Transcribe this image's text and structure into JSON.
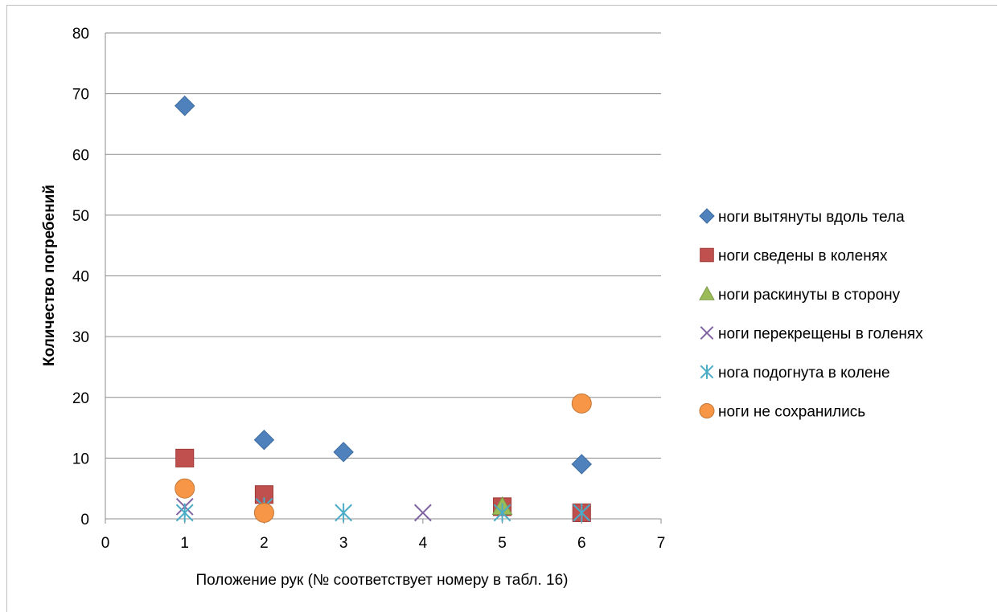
{
  "chart_data": {
    "type": "scatter",
    "title": "",
    "xlabel": "Положение рук (№ соответствует номеру в табл. 16)",
    "ylabel": "Количество погребений",
    "xlim": [
      0,
      7
    ],
    "ylim": [
      0,
      80
    ],
    "x_ticks": [
      "0",
      "1",
      "2",
      "3",
      "4",
      "5",
      "6",
      "7"
    ],
    "y_ticks": [
      "0",
      "10",
      "20",
      "30",
      "40",
      "50",
      "60",
      "70",
      "80"
    ],
    "grid": "horizontal",
    "legend_position": "right",
    "series": [
      {
        "name": "ноги вытянуты вдоль тела",
        "marker": "diamond",
        "color": "#4f81bd",
        "points": [
          [
            1,
            68
          ],
          [
            2,
            13
          ],
          [
            3,
            11
          ],
          [
            6,
            9
          ]
        ]
      },
      {
        "name": "ноги сведены в коленях",
        "marker": "square",
        "color": "#c0504d",
        "points": [
          [
            1,
            10
          ],
          [
            2,
            4
          ],
          [
            5,
            2
          ],
          [
            6,
            1
          ]
        ]
      },
      {
        "name": "ноги раскинуты в сторону",
        "marker": "triangle",
        "color": "#9bbb59",
        "points": [
          [
            5,
            2
          ]
        ]
      },
      {
        "name": "ноги перекрещены в голенях",
        "marker": "x",
        "color": "#8064a2",
        "points": [
          [
            1,
            2
          ],
          [
            2,
            2
          ],
          [
            4,
            1
          ],
          [
            6,
            1
          ]
        ]
      },
      {
        "name": "нога подогнута в колене",
        "marker": "star",
        "color": "#4bacc6",
        "points": [
          [
            1,
            1
          ],
          [
            2,
            2
          ],
          [
            3,
            1
          ],
          [
            5,
            1
          ],
          [
            6,
            1
          ]
        ]
      },
      {
        "name": "ноги не сохранились",
        "marker": "circle",
        "color": "#f79646",
        "points": [
          [
            1,
            5
          ],
          [
            2,
            1
          ],
          [
            6,
            19
          ]
        ]
      }
    ]
  }
}
